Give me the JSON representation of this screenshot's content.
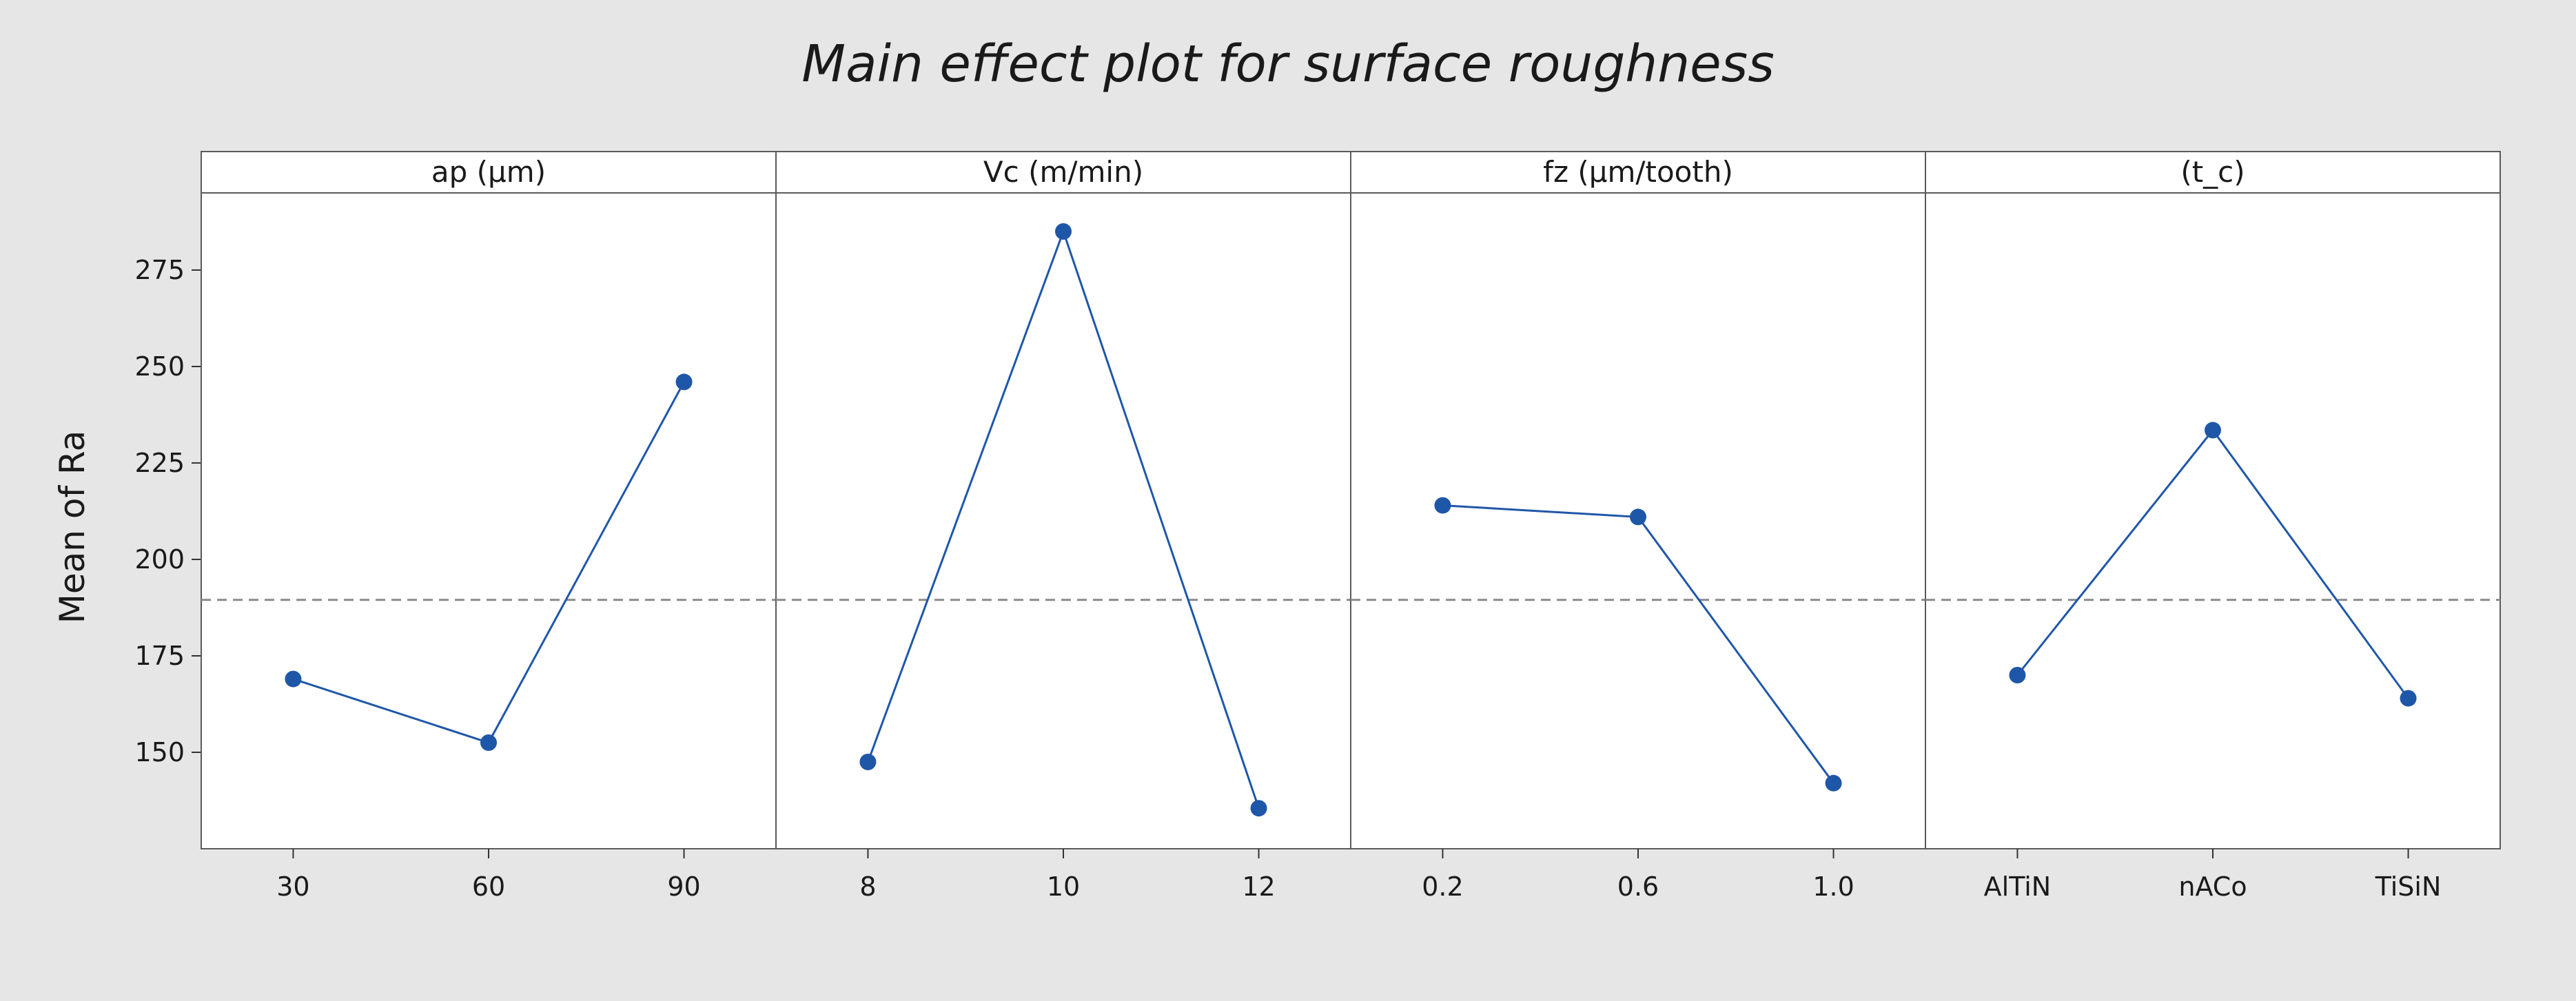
{
  "chart_data": {
    "type": "line",
    "title": "Main effect plot for surface roughness",
    "ylabel": "Mean of Ra",
    "ylim": [
      125,
      295
    ],
    "yticks": [
      150,
      175,
      200,
      225,
      250,
      275
    ],
    "reference_line": 189.5,
    "panels": [
      {
        "factor": "ap (μm)",
        "categories": [
          "30",
          "60",
          "90"
        ],
        "values": [
          169,
          152.5,
          246
        ]
      },
      {
        "factor": "Vc (m/min)",
        "categories": [
          "8",
          "10",
          "12"
        ],
        "values": [
          147.5,
          285,
          135.5
        ]
      },
      {
        "factor": "fz (μm/tooth)",
        "categories": [
          "0.2",
          "0.6",
          "1.0"
        ],
        "values": [
          214,
          211,
          142
        ]
      },
      {
        "factor": "(t_c)",
        "categories": [
          "AlTiN",
          "nACo",
          "TiSiN"
        ],
        "values": [
          170,
          233.5,
          164
        ]
      }
    ],
    "colors": {
      "series": "#1f57a8",
      "background": "#e6e6e6",
      "panel": "#ffffff",
      "reference": "#8a8a8a"
    }
  }
}
